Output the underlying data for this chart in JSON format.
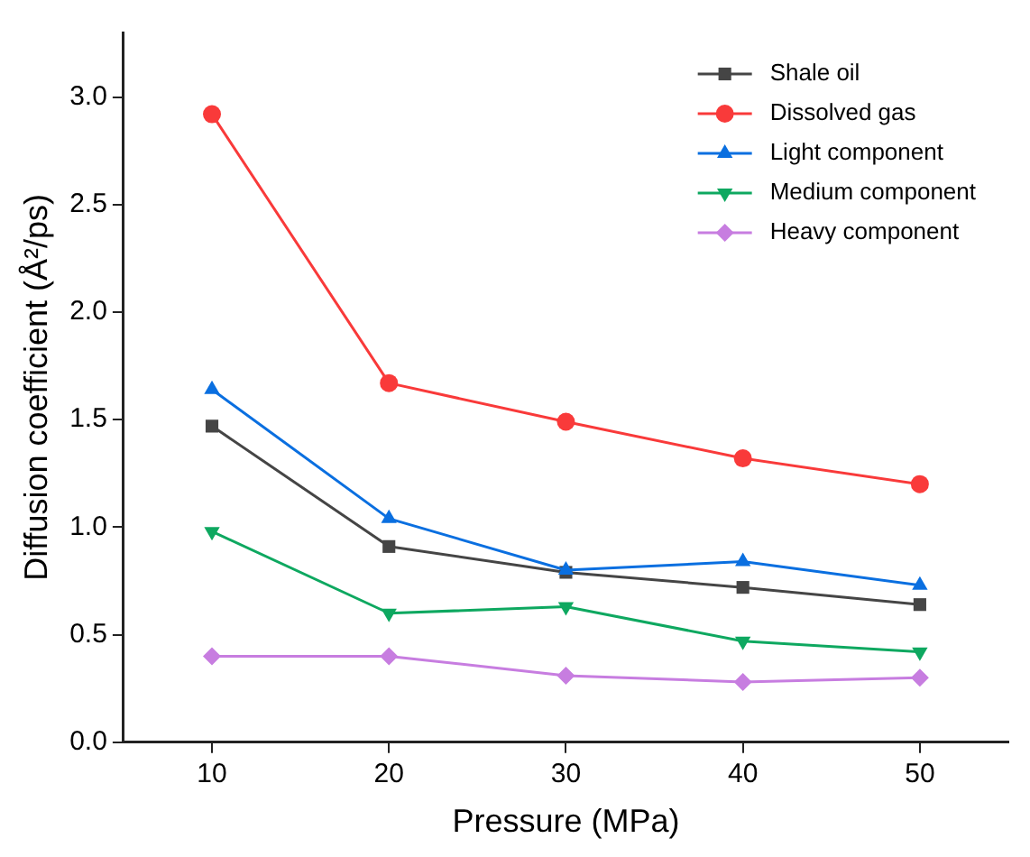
{
  "chart_data": {
    "type": "line",
    "xlabel": "Pressure (MPa)",
    "ylabel": "Diffusion coefficient (Å²/ps)",
    "x": [
      10,
      20,
      30,
      40,
      50
    ],
    "xlim": [
      5,
      55
    ],
    "xticks": [
      10,
      20,
      30,
      40,
      50
    ],
    "ylim": [
      0,
      3.3
    ],
    "yticks": [
      {
        "value": 0,
        "label": "0.0"
      },
      0.5,
      {
        "value": 1,
        "label": "1.0"
      },
      1.5,
      {
        "value": 2,
        "label": "2.0"
      },
      2.5,
      {
        "value": 3,
        "label": "3.0"
      }
    ],
    "grid": false,
    "legend": "top right",
    "line_style": "solid",
    "series": [
      {
        "name": "Shale oil",
        "color": "#454545",
        "marker": "square",
        "values": [
          1.47,
          0.91,
          0.79,
          0.72,
          0.64
        ]
      },
      {
        "name": "Dissolved gas",
        "color": "#f93a3a",
        "marker": "circle",
        "values": [
          2.92,
          1.67,
          1.49,
          1.32,
          1.2
        ]
      },
      {
        "name": "Light component",
        "color": "#0a6fe0",
        "marker": "triangle",
        "values": [
          1.64,
          1.04,
          0.8,
          0.84,
          0.73
        ]
      },
      {
        "name": "Medium component",
        "color": "#0ea860",
        "marker": "triangle_down",
        "values": [
          0.98,
          0.6,
          0.63,
          0.47,
          0.42
        ]
      },
      {
        "name": "Heavy component",
        "color": "#c77de0",
        "marker": "diamond",
        "values": [
          0.4,
          0.4,
          0.31,
          0.28,
          0.3
        ]
      }
    ]
  }
}
